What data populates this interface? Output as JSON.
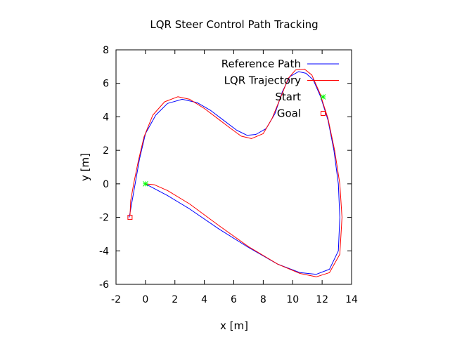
{
  "chart_data": {
    "type": "line",
    "title": "LQR Steer Control Path Tracking",
    "xlabel": "x [m]",
    "ylabel": "y [m]",
    "xlim": [
      -2,
      14
    ],
    "ylim": [
      -6,
      8
    ],
    "x_ticks": [
      "-2",
      "0",
      "2",
      "4",
      "6",
      "8",
      "10",
      "12",
      "14"
    ],
    "y_ticks": [
      "-6",
      "-4",
      "-2",
      "0",
      "2",
      "4",
      "6",
      "8"
    ],
    "grid": false,
    "legend_position": "top-right",
    "series": [
      {
        "name": "Reference Path",
        "kind": "line",
        "color": "#0000ff",
        "points": [
          [
            0,
            0
          ],
          [
            1.5,
            -0.7
          ],
          [
            3,
            -1.5
          ],
          [
            5,
            -2.7
          ],
          [
            7,
            -3.8
          ],
          [
            9,
            -4.8
          ],
          [
            10.5,
            -5.3
          ],
          [
            11.6,
            -5.4
          ],
          [
            12.5,
            -5.1
          ],
          [
            13.1,
            -4
          ],
          [
            13.2,
            -2
          ],
          [
            13.1,
            0
          ],
          [
            12.8,
            2
          ],
          [
            12.4,
            3.8
          ],
          [
            11.9,
            5.2
          ],
          [
            11.4,
            6.2
          ],
          [
            10.9,
            6.6
          ],
          [
            10.4,
            6.7
          ],
          [
            9.8,
            6.4
          ],
          [
            9.3,
            5.5
          ],
          [
            8.8,
            4.2
          ],
          [
            8.2,
            3.3
          ],
          [
            7.5,
            2.95
          ],
          [
            6.9,
            2.9
          ],
          [
            6.2,
            3.2
          ],
          [
            5.3,
            3.8
          ],
          [
            4.4,
            4.4
          ],
          [
            3.5,
            4.85
          ],
          [
            2.5,
            5.05
          ],
          [
            1.5,
            4.8
          ],
          [
            0.7,
            4.1
          ],
          [
            0,
            3
          ],
          [
            -0.4,
            1.5
          ],
          [
            -0.7,
            0
          ],
          [
            -0.9,
            -1
          ],
          [
            -1.1,
            -2
          ]
        ]
      },
      {
        "name": "LQR Trajectory",
        "kind": "line",
        "color": "#ff0000",
        "points": [
          [
            0,
            0
          ],
          [
            0.6,
            -0.05
          ],
          [
            1.5,
            -0.4
          ],
          [
            3,
            -1.2
          ],
          [
            5,
            -2.5
          ],
          [
            7,
            -3.75
          ],
          [
            9,
            -4.8
          ],
          [
            10.5,
            -5.35
          ],
          [
            11.6,
            -5.55
          ],
          [
            12.5,
            -5.3
          ],
          [
            13.2,
            -4.2
          ],
          [
            13.35,
            -2
          ],
          [
            13.2,
            0
          ],
          [
            12.85,
            2
          ],
          [
            12.4,
            3.9
          ],
          [
            11.85,
            5.4
          ],
          [
            11.3,
            6.5
          ],
          [
            10.8,
            6.85
          ],
          [
            10.2,
            6.8
          ],
          [
            9.7,
            6.3
          ],
          [
            9.2,
            5.2
          ],
          [
            8.6,
            3.9
          ],
          [
            8,
            3
          ],
          [
            7.2,
            2.7
          ],
          [
            6.5,
            2.85
          ],
          [
            5.8,
            3.3
          ],
          [
            4.9,
            3.9
          ],
          [
            4,
            4.5
          ],
          [
            3,
            5.05
          ],
          [
            2.2,
            5.2
          ],
          [
            1.3,
            4.9
          ],
          [
            0.5,
            4.1
          ],
          [
            -0.1,
            2.8
          ],
          [
            -0.5,
            1.3
          ],
          [
            -0.8,
            0
          ],
          [
            -1,
            -1
          ],
          [
            -1.05,
            -1.9
          ]
        ]
      },
      {
        "name": "Start",
        "kind": "marker",
        "marker": "star",
        "color": "#00ff00",
        "points": [
          [
            0,
            0
          ]
        ]
      },
      {
        "name": "Goal",
        "kind": "marker",
        "marker": "square",
        "color": "#ff0000",
        "points": [
          [
            -1.05,
            -2
          ]
        ]
      }
    ]
  }
}
